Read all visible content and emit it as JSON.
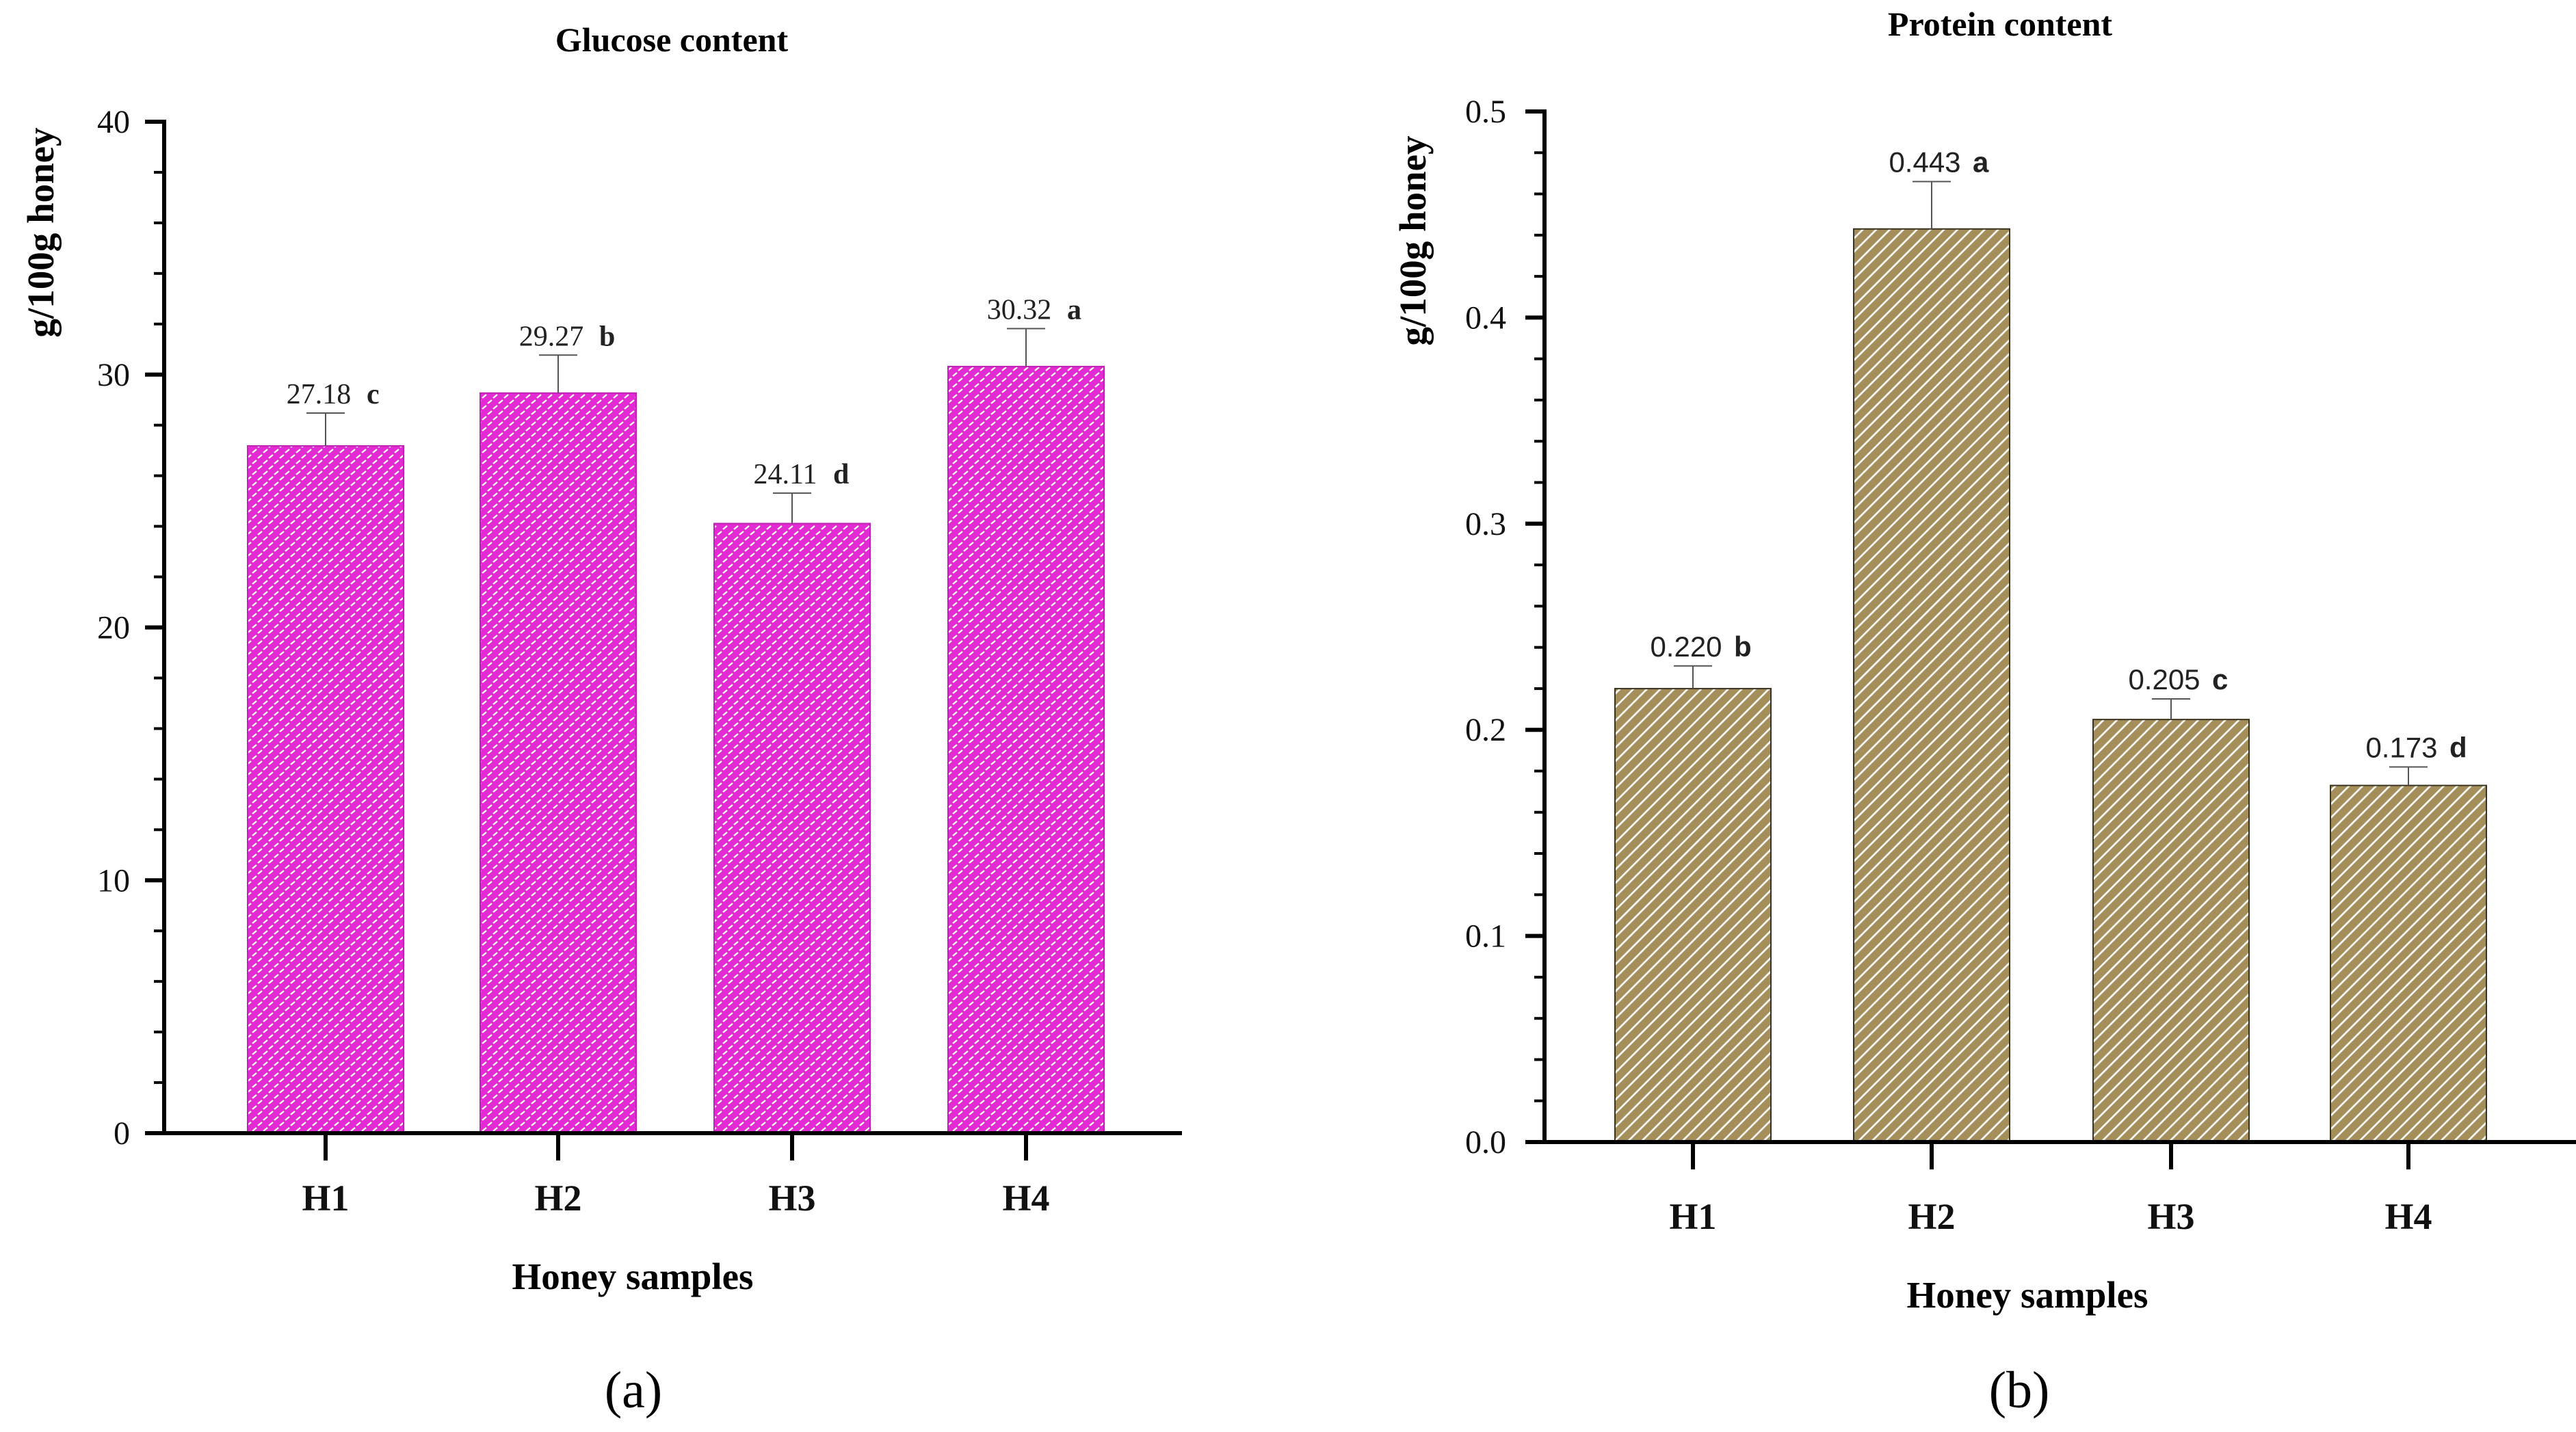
{
  "chart_data": [
    {
      "type": "bar",
      "panel": "a",
      "title": "Glucose content",
      "xlabel": "Honey samples",
      "ylabel": "g/100g honey",
      "categories": [
        "H1",
        "H2",
        "H3",
        "H4"
      ],
      "values": [
        27.18,
        29.27,
        24.11,
        30.32
      ],
      "error": [
        1.3,
        1.5,
        1.2,
        1.5
      ],
      "value_labels": [
        "27.18",
        "29.27",
        "24.11",
        "30.32"
      ],
      "significance": [
        "c",
        "b",
        "d",
        "a"
      ],
      "ylim": [
        0,
        40
      ],
      "yticks": [
        0,
        10,
        20,
        30,
        40
      ],
      "ytick_labels": [
        "0",
        "10",
        "20",
        "30",
        "40"
      ],
      "minor_per_major": 5,
      "bar_color": "#e22bd3",
      "pattern": "brick",
      "label_font": "serif"
    },
    {
      "type": "bar",
      "panel": "b",
      "title": "Protein content",
      "xlabel": "Honey samples",
      "ylabel": "g/100g honey",
      "categories": [
        "H1",
        "H2",
        "H3",
        "H4"
      ],
      "values": [
        0.22,
        0.443,
        0.205,
        0.173
      ],
      "error": [
        0.011,
        0.023,
        0.01,
        0.009
      ],
      "value_labels": [
        "0.220",
        "0.443",
        "0.205",
        "0.173"
      ],
      "significance": [
        "b",
        "a",
        "c",
        "d"
      ],
      "ylim": [
        0,
        0.5
      ],
      "yticks": [
        0,
        0.1,
        0.2,
        0.3,
        0.4,
        0.5
      ],
      "ytick_labels": [
        "0.0",
        "0.1",
        "0.2",
        "0.3",
        "0.4",
        "0.5"
      ],
      "minor_per_major": 5,
      "bar_color": "#a48f5b",
      "pattern": "diagonal",
      "label_font": "sans"
    }
  ],
  "panel_labels": [
    "(a)",
    "(b)"
  ]
}
